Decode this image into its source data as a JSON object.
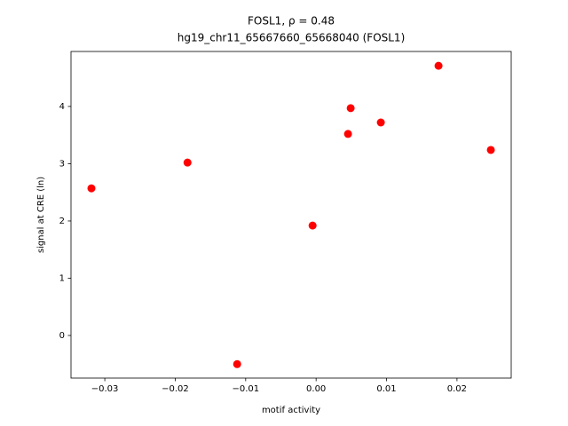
{
  "chart_data": {
    "type": "scatter",
    "title": "FOSL1, ρ = 0.48",
    "subtitle": "hg19_chr11_65667660_65668040 (FOSL1)",
    "x_label": "motif activity",
    "y_label": "signal at CRE (ln)",
    "color": "#ff0000",
    "x": [
      -0.0319,
      -0.01826,
      -0.01121,
      -0.0005,
      0.00453,
      0.00491,
      0.00919,
      0.01738,
      0.02481
    ],
    "values": [
      2.57,
      3.02,
      -0.5,
      1.92,
      3.52,
      3.97,
      3.72,
      4.71,
      3.24
    ],
    "xlim": [
      -0.0348,
      0.0277
    ],
    "ylim": [
      -0.744,
      4.96
    ],
    "xticks": [
      {
        "value": -0.03,
        "label": "−0.03"
      },
      {
        "value": -0.02,
        "label": "−0.02"
      },
      {
        "value": -0.01,
        "label": "−0.01"
      },
      {
        "value": 0,
        "label": "0.00"
      },
      0.01,
      0.02
    ],
    "yticks": [
      0,
      1,
      2,
      3,
      4
    ]
  }
}
